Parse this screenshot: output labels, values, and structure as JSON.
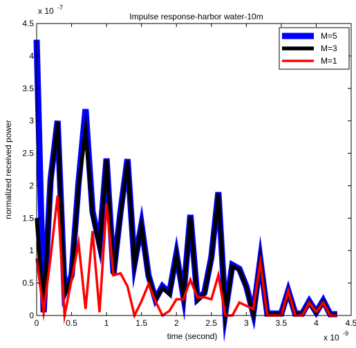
{
  "chart_data": {
    "type": "line",
    "title": "Impulse response-harbor water-10m",
    "xlabel": "time (second)",
    "ylabel": "normalized received power",
    "x_exponent_label": "x 10",
    "x_exponent": "-9",
    "y_exponent_label": "x 10",
    "y_exponent": "-7",
    "xlim": [
      0,
      4.5
    ],
    "ylim": [
      0,
      4.5
    ],
    "x_ticks": [
      "0",
      "0.5",
      "1",
      "1.5",
      "2",
      "2.5",
      "3",
      "3.5",
      "4",
      "4.5"
    ],
    "y_ticks": [
      "0",
      "0.5",
      "1",
      "1.5",
      "2",
      "2.5",
      "3",
      "3.5",
      "4",
      "4.5"
    ],
    "grid": false,
    "legend_position": "top-right",
    "x": [
      0,
      0.1,
      0.2,
      0.3,
      0.4,
      0.5,
      0.6,
      0.7,
      0.8,
      0.9,
      1.0,
      1.1,
      1.2,
      1.3,
      1.4,
      1.5,
      1.6,
      1.7,
      1.8,
      1.9,
      2.0,
      2.1,
      2.2,
      2.3,
      2.4,
      2.5,
      2.6,
      2.7,
      2.8,
      2.9,
      3.0,
      3.1,
      3.2,
      3.3,
      3.4,
      3.5,
      3.6,
      3.7,
      3.8,
      3.9,
      4.0,
      4.1,
      4.2,
      4.3
    ],
    "series": [
      {
        "name": "M=5",
        "color": "#0000ff",
        "values": [
          4.25,
          0.05,
          2.1,
          3.0,
          0.35,
          0.62,
          2.05,
          3.18,
          1.6,
          1.1,
          2.42,
          0.65,
          1.6,
          2.41,
          0.8,
          1.4,
          0.62,
          0.25,
          0.45,
          0.35,
          0.95,
          0.3,
          1.55,
          0.25,
          0.35,
          0.9,
          1.9,
          0.05,
          0.78,
          0.72,
          0.45,
          0.03,
          0.86,
          0.03,
          0.03,
          0.03,
          0.38,
          0.03,
          0.03,
          0.22,
          0.05,
          0.23,
          0.02,
          0.02
        ]
      },
      {
        "name": "M=3",
        "color": "#000000",
        "values": [
          1.5,
          0.05,
          2.05,
          2.98,
          0.33,
          0.58,
          2.0,
          2.85,
          1.55,
          1.05,
          2.4,
          0.62,
          1.55,
          2.38,
          0.78,
          1.38,
          0.6,
          0.25,
          0.42,
          0.33,
          0.93,
          0.3,
          1.52,
          0.23,
          0.33,
          0.88,
          1.88,
          0.03,
          0.76,
          0.7,
          0.43,
          0.02,
          0.84,
          0.02,
          0.02,
          0.02,
          0.36,
          0.02,
          0.02,
          0.2,
          0.04,
          0.21,
          0.01,
          0.01
        ]
      },
      {
        "name": "M=1",
        "color": "#ff0000",
        "values": [
          0.88,
          0.05,
          0.9,
          1.85,
          0.0,
          0.55,
          1.12,
          0.1,
          1.3,
          0.05,
          1.72,
          0.62,
          0.65,
          0.45,
          0.0,
          0.22,
          0.48,
          0.22,
          0.0,
          0.07,
          0.25,
          0.25,
          0.55,
          0.28,
          0.28,
          0.25,
          0.62,
          0.0,
          0.0,
          0.2,
          0.15,
          0.1,
          0.82,
          0.0,
          0.0,
          0.0,
          0.38,
          0.0,
          0.0,
          0.2,
          0.05,
          0.2,
          0.0,
          0.0
        ]
      }
    ]
  }
}
